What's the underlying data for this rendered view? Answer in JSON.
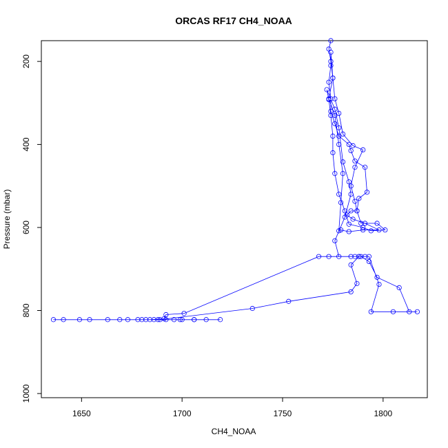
{
  "chart_data": {
    "type": "line",
    "title": "ORCAS RF17 CH4_NOAA",
    "xlabel": "CH4_NOAA",
    "ylabel": "Pressure (mbar)",
    "xlim": [
      1630,
      1822
    ],
    "ylim": [
      1010,
      150
    ],
    "y_inverted": true,
    "x_ticks": [
      1650,
      1700,
      1750,
      1800
    ],
    "y_ticks": [
      200,
      400,
      600,
      800,
      1000
    ],
    "grid": false,
    "marker": "open-circle",
    "series_color": "#0000ff",
    "series": [
      {
        "points": [
          [
            1774,
            150
          ],
          [
            1773,
            170
          ],
          [
            1774,
            200
          ],
          [
            1775,
            240
          ],
          [
            1773,
            290
          ],
          [
            1776,
            330
          ],
          [
            1778,
            400
          ],
          [
            1780,
            470
          ],
          [
            1779,
            540
          ],
          [
            1778,
            608
          ],
          [
            1779,
            606
          ],
          [
            1783,
            610
          ],
          [
            1790,
            606
          ],
          [
            1798,
            606
          ],
          [
            1791,
            590
          ],
          [
            1785,
            580
          ],
          [
            1782,
            570
          ],
          [
            1784,
            560
          ],
          [
            1787,
            560
          ],
          [
            1788,
            530
          ],
          [
            1792,
            515
          ],
          [
            1791,
            455
          ],
          [
            1786,
            440
          ],
          [
            1784,
            415
          ],
          [
            1783,
            400
          ],
          [
            1778,
            380
          ],
          [
            1776,
            350
          ],
          [
            1774,
            320
          ],
          [
            1774,
            290
          ],
          [
            1773,
            250
          ],
          [
            1774,
            210
          ],
          [
            1774,
            178
          ],
          [
            1775,
            240
          ],
          [
            1776,
            290
          ],
          [
            1778,
            325
          ],
          [
            1780,
            375
          ],
          [
            1785,
            403
          ],
          [
            1790,
            413
          ],
          [
            1786,
            455
          ],
          [
            1784,
            500
          ],
          [
            1786,
            537
          ],
          [
            1787,
            560
          ],
          [
            1789,
            590
          ],
          [
            1797,
            590
          ],
          [
            1801,
            606
          ],
          [
            1794,
            608
          ],
          [
            1790,
            600
          ],
          [
            1783,
            592
          ],
          [
            1781,
            560
          ],
          [
            1778,
            520
          ],
          [
            1776,
            470
          ],
          [
            1775,
            420
          ],
          [
            1775,
            380
          ],
          [
            1774,
            330
          ],
          [
            1773,
            292
          ],
          [
            1772,
            268
          ],
          [
            1776,
            315
          ],
          [
            1778,
            360
          ],
          [
            1780,
            442
          ],
          [
            1783,
            490
          ],
          [
            1784,
            520
          ],
          [
            1781,
            575
          ],
          [
            1776,
            632
          ],
          [
            1778,
            670
          ],
          [
            1784,
            670
          ],
          [
            1789,
            670
          ],
          [
            1793,
            682
          ],
          [
            1797,
            720
          ],
          [
            1808,
            745
          ],
          [
            1813,
            803
          ],
          [
            1817,
            803
          ],
          [
            1805,
            803
          ],
          [
            1794,
            803
          ],
          [
            1798,
            737
          ],
          [
            1793,
            670
          ],
          [
            1786,
            670
          ],
          [
            1773,
            670
          ],
          [
            1768,
            670
          ],
          [
            1701,
            807
          ],
          [
            1692,
            810
          ],
          [
            1691,
            820
          ],
          [
            1684,
            822
          ],
          [
            1678,
            822
          ],
          [
            1686,
            822
          ],
          [
            1696,
            822
          ],
          [
            1700,
            822
          ],
          [
            1706,
            822
          ],
          [
            1712,
            822
          ],
          [
            1719,
            822
          ],
          [
            1706,
            822
          ],
          [
            1699,
            822
          ],
          [
            1692,
            822
          ],
          [
            1688,
            822
          ],
          [
            1682,
            822
          ],
          [
            1673,
            822
          ],
          [
            1669,
            822
          ],
          [
            1654,
            822
          ],
          [
            1641,
            822
          ],
          [
            1636,
            822
          ],
          [
            1649,
            822
          ],
          [
            1663,
            822
          ],
          [
            1680,
            822
          ],
          [
            1689,
            822
          ],
          [
            1735,
            795
          ],
          [
            1753,
            778
          ],
          [
            1784,
            755
          ],
          [
            1787,
            735
          ],
          [
            1784,
            690
          ],
          [
            1788,
            670
          ],
          [
            1791,
            670
          ],
          [
            1788,
            670
          ]
        ]
      }
    ]
  }
}
